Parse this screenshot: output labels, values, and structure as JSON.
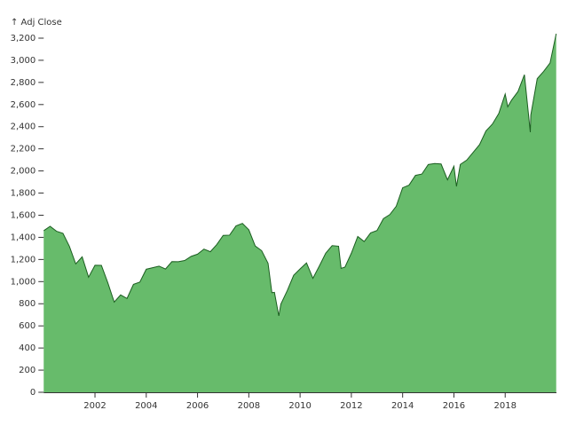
{
  "chart_data": {
    "type": "area",
    "y_label": "↑ Adj Close",
    "x": [
      2000.0,
      2000.25,
      2000.5,
      2000.75,
      2001.0,
      2001.25,
      2001.5,
      2001.75,
      2002.0,
      2002.25,
      2002.5,
      2002.75,
      2003.0,
      2003.25,
      2003.5,
      2003.75,
      2004.0,
      2004.25,
      2004.5,
      2004.75,
      2005.0,
      2005.25,
      2005.5,
      2005.75,
      2006.0,
      2006.25,
      2006.5,
      2006.75,
      2007.0,
      2007.25,
      2007.5,
      2007.75,
      2008.0,
      2008.25,
      2008.5,
      2008.75,
      2008.9,
      2009.0,
      2009.17,
      2009.25,
      2009.5,
      2009.75,
      2010.0,
      2010.25,
      2010.5,
      2010.75,
      2011.0,
      2011.25,
      2011.5,
      2011.6,
      2011.75,
      2012.0,
      2012.25,
      2012.5,
      2012.75,
      2013.0,
      2013.25,
      2013.5,
      2013.75,
      2014.0,
      2014.25,
      2014.5,
      2014.75,
      2015.0,
      2015.25,
      2015.5,
      2015.75,
      2016.0,
      2016.1,
      2016.25,
      2016.5,
      2016.75,
      2017.0,
      2017.25,
      2017.5,
      2017.75,
      2018.0,
      2018.1,
      2018.25,
      2018.5,
      2018.75,
      2018.98,
      2019.0,
      2019.25,
      2019.5,
      2019.75,
      2019.99
    ],
    "values": [
      1460,
      1500,
      1455,
      1436,
      1320,
      1160,
      1224,
      1040,
      1148,
      1147,
      990,
      815,
      880,
      848,
      975,
      996,
      1112,
      1126,
      1140,
      1114,
      1181,
      1180,
      1191,
      1228,
      1248,
      1294,
      1270,
      1335,
      1418,
      1420,
      1503,
      1526,
      1468,
      1322,
      1280,
      1166,
      900,
      903,
      690,
      797,
      919,
      1057,
      1115,
      1169,
      1030,
      1141,
      1257,
      1325,
      1320,
      1120,
      1131,
      1257,
      1408,
      1362,
      1440,
      1462,
      1569,
      1606,
      1681,
      1848,
      1872,
      1960,
      1972,
      2058,
      2067,
      2063,
      1920,
      2043,
      1860,
      2059,
      2098,
      2168,
      2238,
      2362,
      2423,
      2519,
      2695,
      2580,
      2640,
      2718,
      2870,
      2350,
      2506,
      2834,
      2900,
      2976,
      3240
    ],
    "color": "#67bb6b",
    "line_color": "#1b5e20",
    "xlim": [
      2000,
      2020
    ],
    "xticks": [
      2002,
      2004,
      2006,
      2008,
      2010,
      2012,
      2014,
      2016,
      2018
    ],
    "ylim": [
      0,
      3240
    ],
    "yticks": [
      0,
      200,
      400,
      600,
      800,
      {
        "value": 1000,
        "label": "1,000"
      },
      {
        "value": 1200,
        "label": "1,200"
      },
      {
        "value": 1400,
        "label": "1,400"
      },
      {
        "value": 1600,
        "label": "1,600"
      },
      {
        "value": 1800,
        "label": "1,800"
      },
      {
        "value": 2000,
        "label": "2,000"
      },
      {
        "value": 2200,
        "label": "2,200"
      },
      {
        "value": 2400,
        "label": "2,400"
      },
      {
        "value": 2600,
        "label": "2,600"
      },
      {
        "value": 2800,
        "label": "2,800"
      },
      {
        "value": 3000,
        "label": "3,000"
      },
      {
        "value": 3200,
        "label": "3,200"
      }
    ]
  }
}
